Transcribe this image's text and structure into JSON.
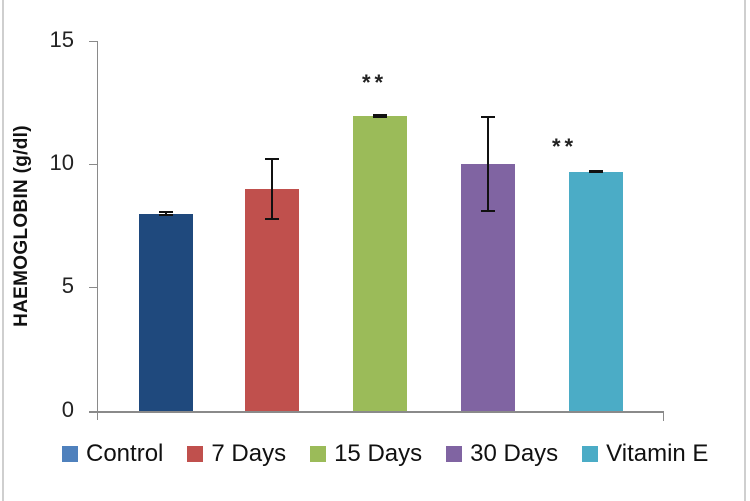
{
  "chart_data": {
    "type": "bar",
    "title": "",
    "xlabel": "",
    "ylabel": "HAEMOGLOBIN (g/dl)",
    "ylim": [
      0,
      15
    ],
    "yticks": [
      0,
      5,
      10,
      15
    ],
    "grid": false,
    "legend_position": "bottom",
    "categories": [
      "Control",
      "7 Days",
      "15 Days",
      "30 Days",
      "Vitamin E"
    ],
    "values": [
      8.0,
      9.0,
      11.95,
      10.0,
      9.7
    ],
    "error": [
      0.05,
      1.2,
      0.05,
      1.9,
      0.03
    ],
    "colors": [
      "#1F497D",
      "#C0504D",
      "#9BBB59",
      "#8064A2",
      "#4BACC6"
    ],
    "legend_colors": [
      "#4F81BD",
      "#C0504D",
      "#9BBB59",
      "#8064A2",
      "#4BACC6"
    ],
    "annotations": [
      {
        "category": "15 Days",
        "text": "**"
      },
      {
        "category": "Vitamin E",
        "text": "**"
      }
    ]
  },
  "axis": {
    "ylabel": "HAEMOGLOBIN (g/dl)",
    "ticks": [
      "0",
      "5",
      "10",
      "15"
    ]
  },
  "legend": [
    "Control",
    "7 Days",
    "15 Days",
    "30 Days",
    "Vitamin E"
  ],
  "annotations": [
    "**",
    "**"
  ]
}
